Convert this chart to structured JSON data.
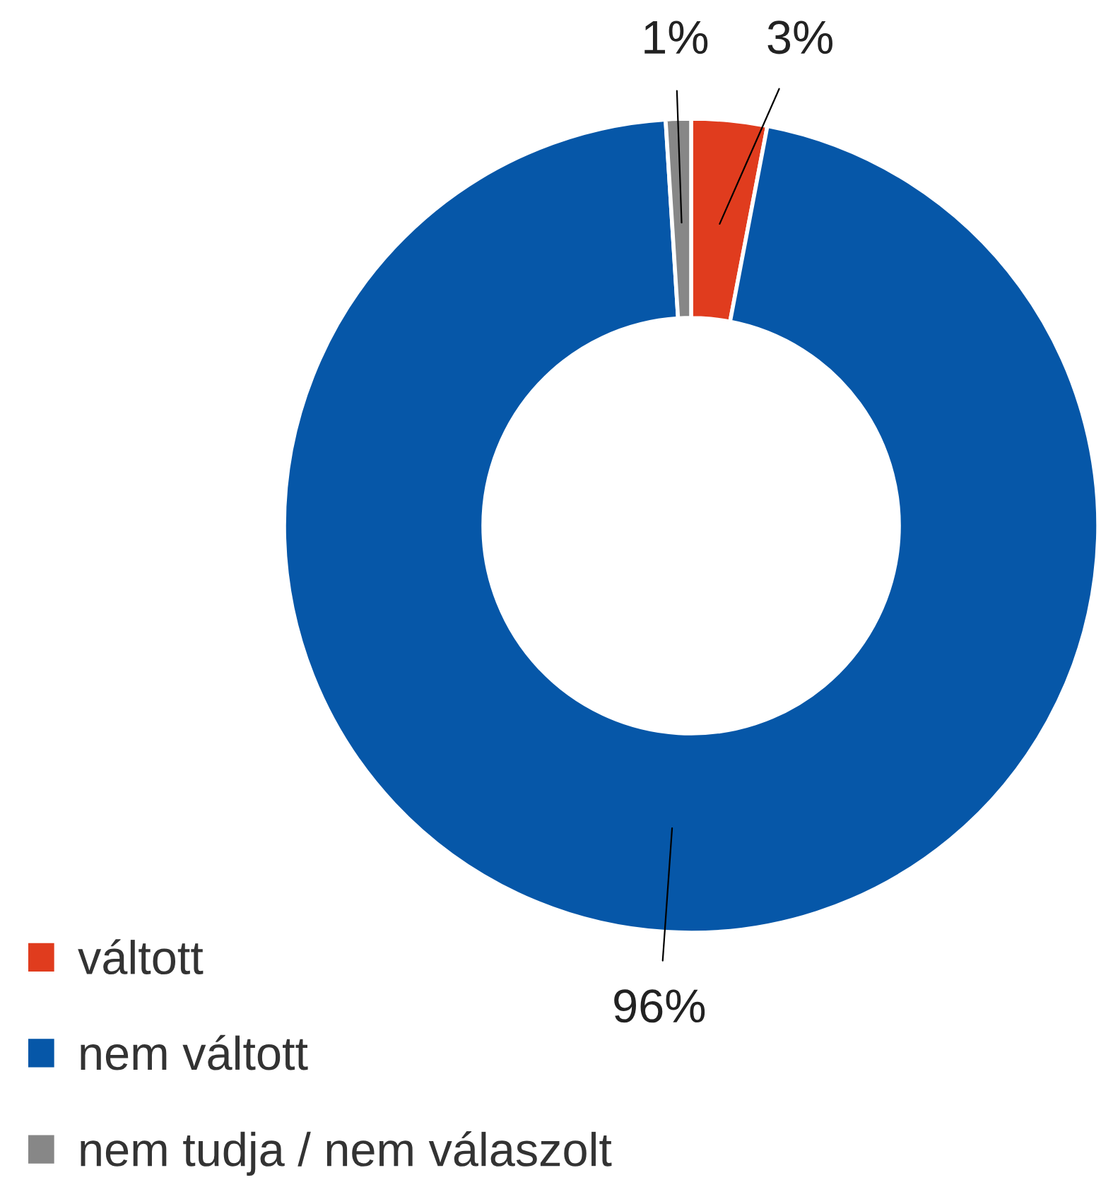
{
  "chart_data": {
    "type": "donut",
    "categories": [
      "váltott",
      "nem váltott",
      "nem tudja / nem válaszolt"
    ],
    "values": [
      3,
      96,
      1
    ],
    "colors": [
      "#e03c1e",
      "#0657a8",
      "#878787"
    ],
    "value_labels": [
      "3%",
      "96%",
      "1%"
    ],
    "legend": "bottom left"
  }
}
